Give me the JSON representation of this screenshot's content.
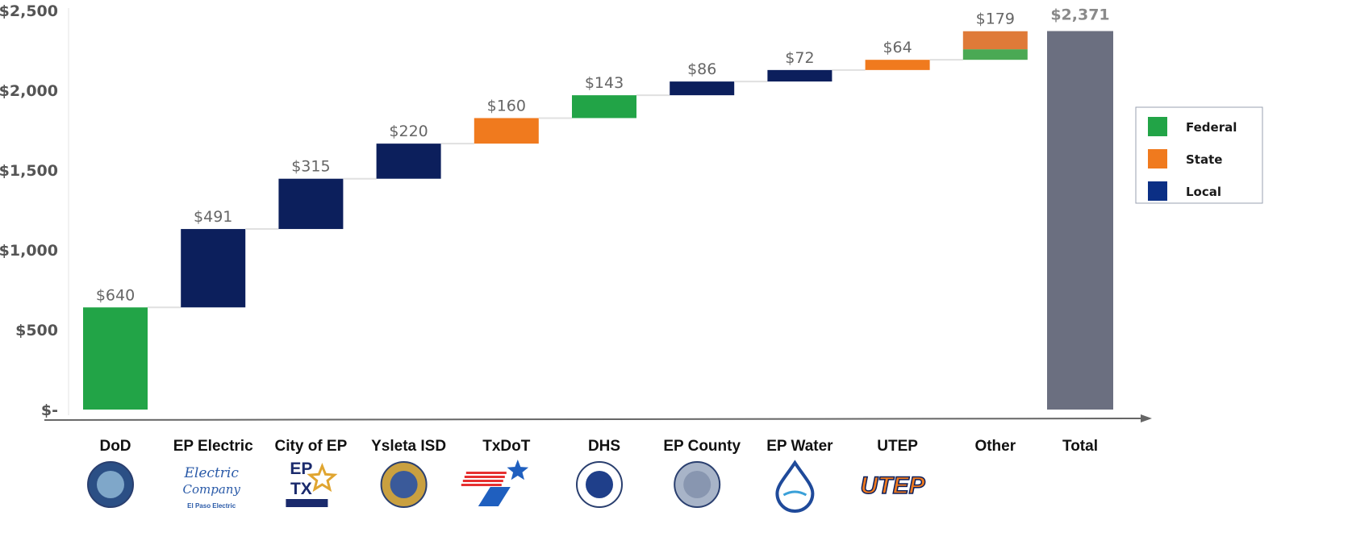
{
  "chart_data": {
    "type": "waterfall",
    "title": "",
    "xlabel": "",
    "ylabel": "",
    "ylim": [
      0,
      2500
    ],
    "yticks": [
      0,
      500,
      1000,
      1500,
      2000,
      2500
    ],
    "ytick_labels": [
      "$-",
      "$500",
      "$1,000",
      "$1,500",
      "$2,000",
      "$2,500"
    ],
    "grid": false,
    "legend_position": "right",
    "legend": [
      {
        "name": "Federal",
        "color": "#22a447"
      },
      {
        "name": "State",
        "color": "#f07a1e"
      },
      {
        "name": "Local",
        "color": "#0b2f85"
      }
    ],
    "colors": {
      "Federal": "#22a447",
      "State": "#f07a1e",
      "Local": "#0c1f5c",
      "Total": "#6b6f80",
      "OtherState": "#df7a38",
      "OtherFederal": "#4aa954"
    },
    "categories": [
      "DoD",
      "EP Electric",
      "City of EP",
      "Ysleta ISD",
      "TxDoT",
      "DHS",
      "EP County",
      "EP Water",
      "UTEP",
      "Other",
      "Total"
    ],
    "values": [
      640,
      491,
      315,
      220,
      160,
      143,
      86,
      72,
      64,
      179,
      2371
    ],
    "value_labels": [
      "$640",
      "$491",
      "$315",
      "$220",
      "$160",
      "$143",
      "$86",
      "$72",
      "$64",
      "$179",
      "$2,371"
    ],
    "funding_type": [
      "Federal",
      "Local",
      "Local",
      "Local",
      "State",
      "Federal",
      "Local",
      "Local",
      "State",
      "Mixed",
      "Total"
    ],
    "other_breakdown": {
      "Federal": 66,
      "State": 113
    },
    "logo_text": [
      "",
      "Electric Company El Paso Electric",
      "EP TX CITY OF EL PASO",
      "",
      "Texas Department of Transportation",
      "",
      "",
      "",
      "UTEP",
      "",
      ""
    ]
  }
}
